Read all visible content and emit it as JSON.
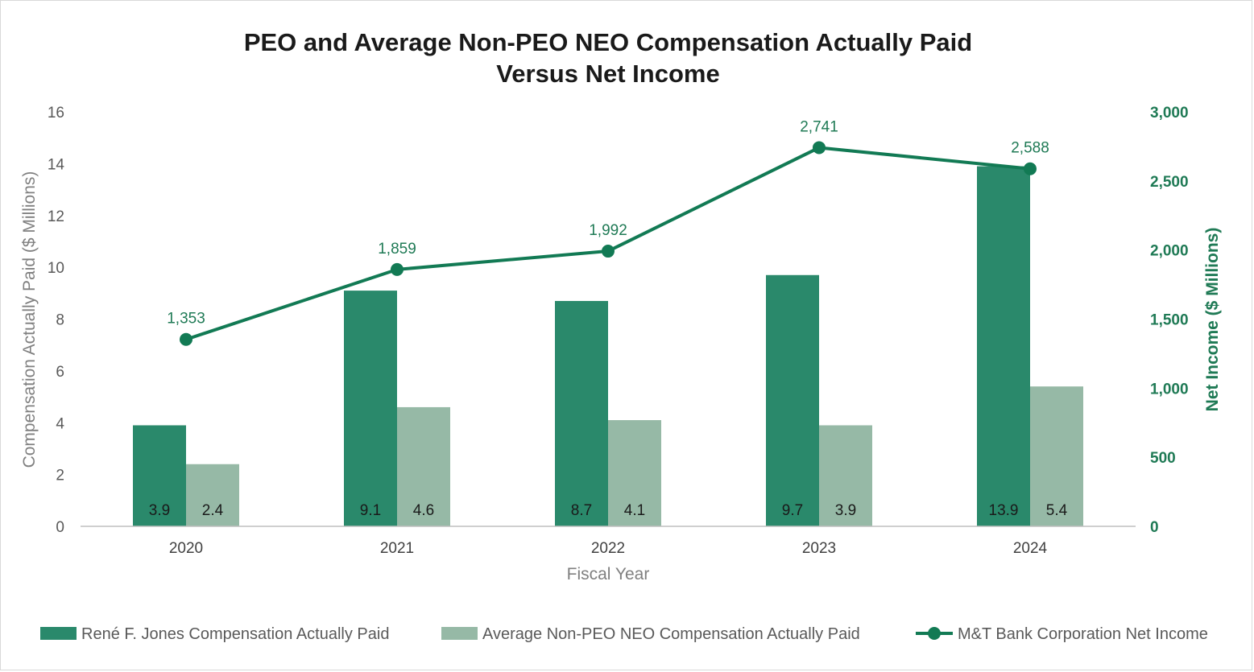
{
  "chart_data": {
    "type": "bar",
    "title_line1": "PEO and Average Non-PEO NEO Compensation Actually Paid",
    "title_line2": "Versus Net Income",
    "xlabel": "Fiscal Year",
    "ylabel": "Compensation Actually Paid ($ Millions)",
    "y2label": "Net Income ($ Millions)",
    "categories": [
      "2020",
      "2021",
      "2022",
      "2023",
      "2024"
    ],
    "ylim": [
      0,
      16
    ],
    "yticks": [
      0,
      2,
      4,
      6,
      8,
      10,
      12,
      14,
      16
    ],
    "y2lim": [
      0,
      3000
    ],
    "y2ticks": [
      0,
      500,
      1000,
      1500,
      2000,
      2500,
      3000
    ],
    "y2tick_labels": [
      "0",
      "500",
      "1,000",
      "1,500",
      "2,000",
      "2,500",
      "3,000"
    ],
    "series": [
      {
        "name": "René F. Jones Compensation Actually Paid",
        "kind": "bar",
        "axis": "left",
        "color": "#2a896b",
        "values": [
          3.9,
          9.1,
          8.7,
          9.7,
          13.9
        ],
        "labels": [
          "3.9",
          "9.1",
          "8.7",
          "9.7",
          "13.9"
        ]
      },
      {
        "name": "Average Non-PEO NEO Compensation Actually Paid",
        "kind": "bar",
        "axis": "left",
        "color": "#96b9a6",
        "values": [
          2.4,
          4.6,
          4.1,
          3.9,
          5.4
        ],
        "labels": [
          "2.4",
          "4.6",
          "4.1",
          "3.9",
          "5.4"
        ]
      },
      {
        "name": "M&T Bank Corporation Net Income",
        "kind": "line",
        "axis": "right",
        "color": "#127a54",
        "values": [
          1353,
          1859,
          1992,
          2741,
          2588
        ],
        "labels": [
          "1,353",
          "1,859",
          "1,992",
          "2,741",
          "2,588"
        ]
      }
    ],
    "grid": false,
    "legend_position": "bottom"
  }
}
